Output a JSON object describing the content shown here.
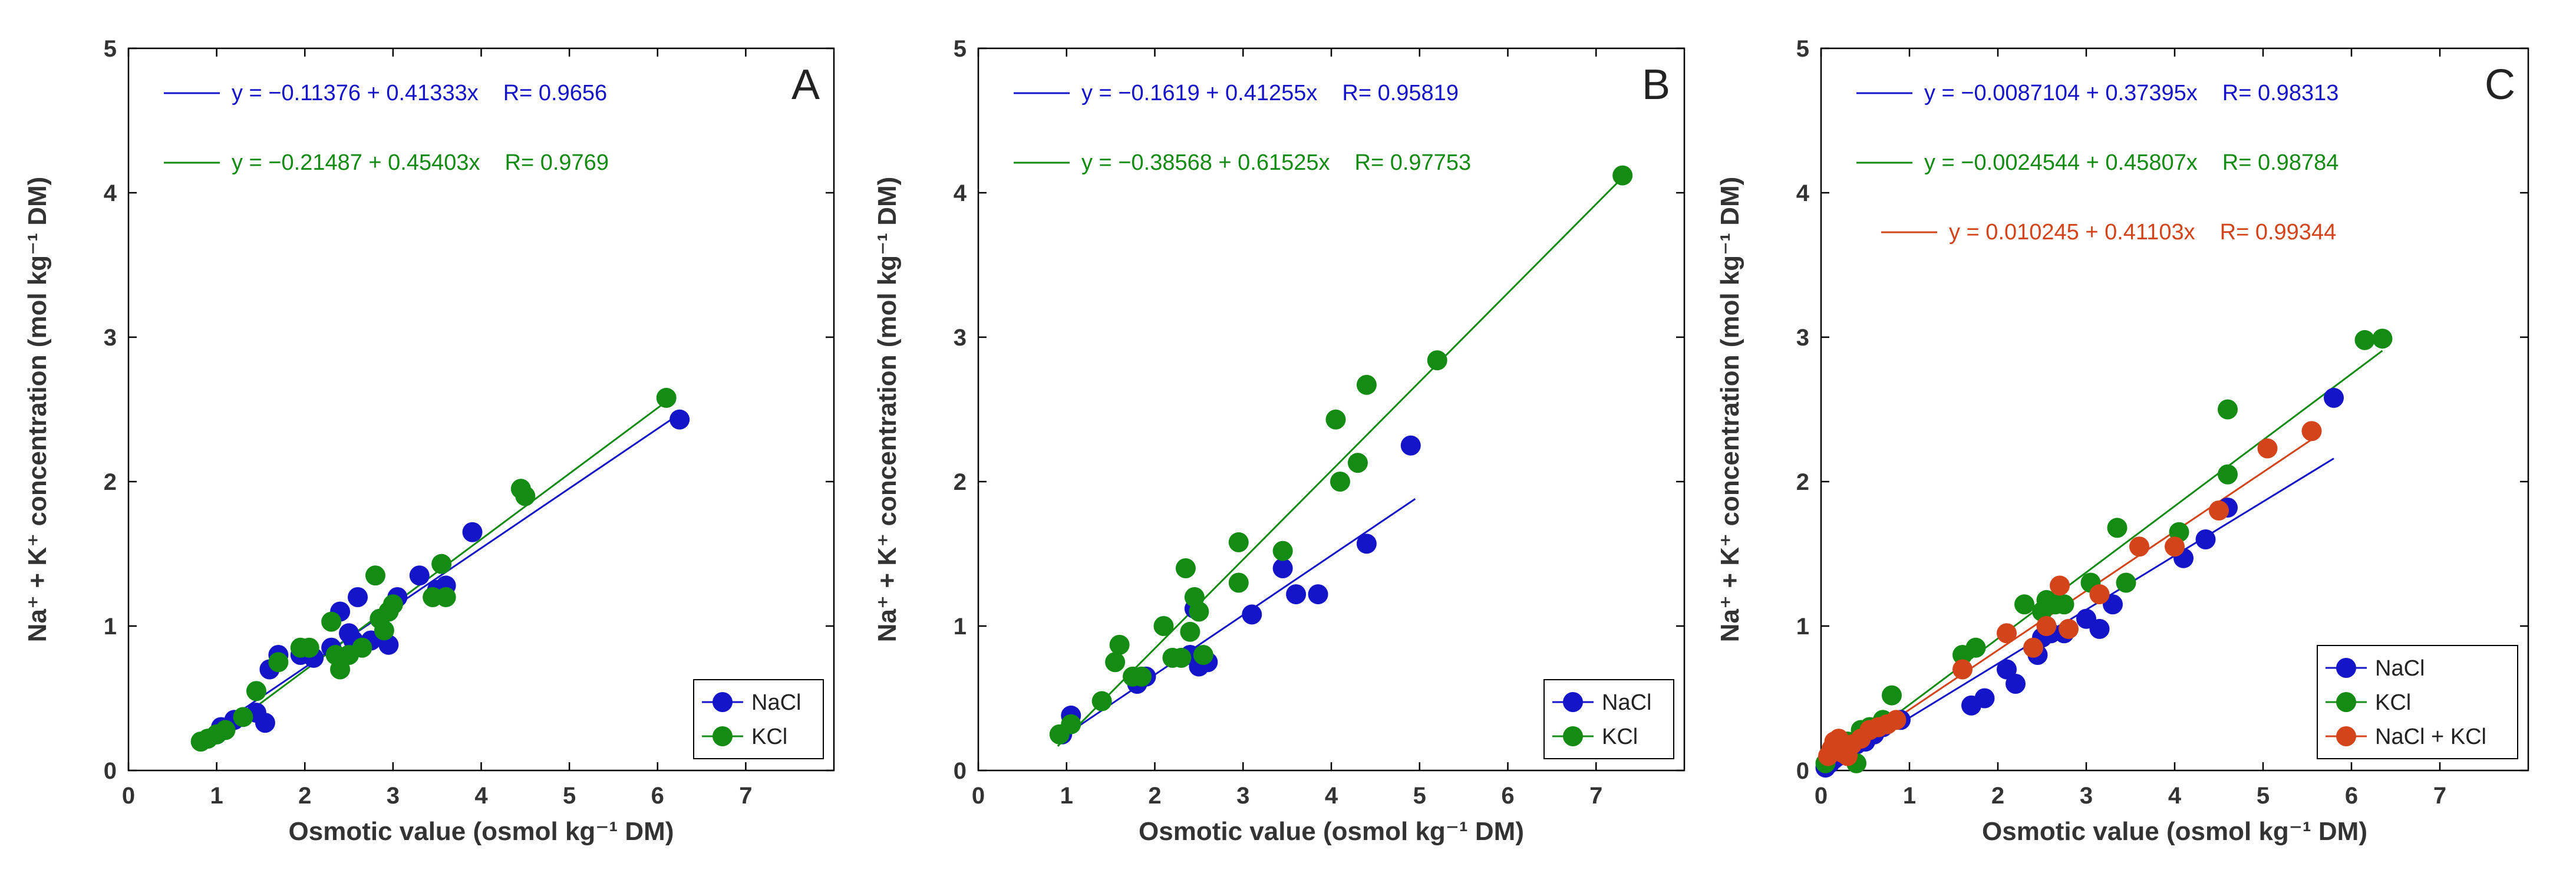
{
  "chart_data": [
    {
      "type": "scatter",
      "panel_label": "A",
      "xlabel": "Osmotic value (osmol kg⁻¹ DM)",
      "ylabel": "Na⁺ + K⁺ concentration (mol kg⁻¹ DM)",
      "xlim": [
        0,
        8
      ],
      "ylim": [
        0,
        5
      ],
      "xticks": [
        "0",
        "1",
        "2",
        "3",
        "4",
        "5",
        "6",
        "7"
      ],
      "yticks": [
        "0",
        "1",
        "2",
        "3",
        "4",
        "5"
      ],
      "legend_position": "bottom-right",
      "series": [
        {
          "name": "NaCl",
          "color": "#1414c8",
          "equation": "y = −0.11376 + 0.41333x",
          "r_text": "R= 0.9656",
          "fit": {
            "intercept": -0.11376,
            "slope": 0.41333,
            "x_range": [
              0.85,
              6.25
            ]
          },
          "points": [
            [
              1.0,
              0.25
            ],
            [
              1.05,
              0.3
            ],
            [
              1.2,
              0.35
            ],
            [
              1.45,
              0.4
            ],
            [
              1.55,
              0.33
            ],
            [
              1.6,
              0.7
            ],
            [
              1.7,
              0.8
            ],
            [
              1.95,
              0.8
            ],
            [
              2.1,
              0.78
            ],
            [
              2.3,
              0.85
            ],
            [
              2.4,
              1.1
            ],
            [
              2.5,
              0.95
            ],
            [
              2.55,
              0.9
            ],
            [
              2.6,
              1.2
            ],
            [
              2.75,
              0.9
            ],
            [
              2.85,
              1.05
            ],
            [
              2.95,
              0.87
            ],
            [
              3.05,
              1.2
            ],
            [
              3.3,
              1.35
            ],
            [
              3.5,
              1.25
            ],
            [
              3.6,
              1.28
            ],
            [
              3.9,
              1.65
            ],
            [
              6.25,
              2.43
            ]
          ]
        },
        {
          "name": "KCl",
          "color": "#148c14",
          "equation": "y = −0.21487 + 0.45403x",
          "r_text": "R= 0.9769",
          "fit": {
            "intercept": -0.21487,
            "slope": 0.45403,
            "x_range": [
              0.8,
              6.1
            ]
          },
          "points": [
            [
              0.82,
              0.2
            ],
            [
              0.9,
              0.22
            ],
            [
              1.0,
              0.25
            ],
            [
              1.1,
              0.28
            ],
            [
              1.3,
              0.37
            ],
            [
              1.45,
              0.55
            ],
            [
              1.7,
              0.75
            ],
            [
              1.95,
              0.85
            ],
            [
              2.05,
              0.85
            ],
            [
              2.3,
              1.03
            ],
            [
              2.35,
              0.8
            ],
            [
              2.4,
              0.7
            ],
            [
              2.5,
              0.8
            ],
            [
              2.65,
              0.85
            ],
            [
              2.8,
              1.35
            ],
            [
              2.85,
              1.05
            ],
            [
              2.9,
              0.97
            ],
            [
              2.95,
              1.1
            ],
            [
              3.0,
              1.15
            ],
            [
              3.45,
              1.2
            ],
            [
              3.55,
              1.43
            ],
            [
              3.6,
              1.2
            ],
            [
              4.45,
              1.95
            ],
            [
              4.5,
              1.9
            ],
            [
              6.1,
              2.58
            ]
          ]
        }
      ]
    },
    {
      "type": "scatter",
      "panel_label": "B",
      "xlabel": "Osmotic value (osmol kg⁻¹ DM)",
      "ylabel": "Na⁺ + K⁺ concentration (mol kg⁻¹ DM)",
      "xlim": [
        0,
        8
      ],
      "ylim": [
        0,
        5
      ],
      "xticks": [
        "0",
        "1",
        "2",
        "3",
        "4",
        "5",
        "6",
        "7"
      ],
      "yticks": [
        "0",
        "1",
        "2",
        "3",
        "4",
        "5"
      ],
      "legend_position": "bottom-right",
      "series": [
        {
          "name": "NaCl",
          "color": "#1414c8",
          "equation": "y = −0.1619 + 0.41255x",
          "r_text": "R= 0.95819",
          "fit": {
            "intercept": -0.1619,
            "slope": 0.41255,
            "x_range": [
              0.95,
              4.95
            ]
          },
          "points": [
            [
              0.95,
              0.25
            ],
            [
              1.05,
              0.38
            ],
            [
              1.8,
              0.6
            ],
            [
              1.9,
              0.65
            ],
            [
              2.4,
              0.8
            ],
            [
              2.45,
              1.12
            ],
            [
              2.5,
              0.72
            ],
            [
              2.6,
              0.75
            ],
            [
              3.1,
              1.08
            ],
            [
              3.45,
              1.4
            ],
            [
              3.6,
              1.22
            ],
            [
              3.85,
              1.22
            ],
            [
              4.4,
              1.57
            ],
            [
              4.9,
              2.25
            ]
          ]
        },
        {
          "name": "KCl",
          "color": "#148c14",
          "equation": "y = −0.38568 + 0.61525x",
          "r_text": "R= 0.97753",
          "fit": {
            "intercept": -0.38568,
            "slope": 0.61525,
            "x_range": [
              0.9,
              7.3
            ]
          },
          "points": [
            [
              0.92,
              0.25
            ],
            [
              1.05,
              0.32
            ],
            [
              1.4,
              0.48
            ],
            [
              1.55,
              0.75
            ],
            [
              1.6,
              0.87
            ],
            [
              1.75,
              0.65
            ],
            [
              1.85,
              0.65
            ],
            [
              2.1,
              1.0
            ],
            [
              2.2,
              0.78
            ],
            [
              2.3,
              0.78
            ],
            [
              2.35,
              1.4
            ],
            [
              2.4,
              0.96
            ],
            [
              2.45,
              1.2
            ],
            [
              2.5,
              1.1
            ],
            [
              2.55,
              0.8
            ],
            [
              2.95,
              1.58
            ],
            [
              2.95,
              1.3
            ],
            [
              3.45,
              1.52
            ],
            [
              4.05,
              2.43
            ],
            [
              4.1,
              2.0
            ],
            [
              4.3,
              2.13
            ],
            [
              4.4,
              2.67
            ],
            [
              5.2,
              2.84
            ],
            [
              7.3,
              4.12
            ]
          ]
        }
      ]
    },
    {
      "type": "scatter",
      "panel_label": "C",
      "xlabel": "Osmotic value (osmol kg⁻¹ DM)",
      "ylabel": "Na⁺ + K⁺ concentration (mol kg⁻¹ DM)",
      "xlim": [
        0,
        8
      ],
      "ylim": [
        0,
        5
      ],
      "xticks": [
        "0",
        "1",
        "2",
        "3",
        "4",
        "5",
        "6",
        "7"
      ],
      "yticks": [
        "0",
        "1",
        "2",
        "3",
        "4",
        "5"
      ],
      "legend_position": "bottom-right",
      "series": [
        {
          "name": "NaCl",
          "color": "#1414c8",
          "equation": "y = −0.0087104 + 0.37395x",
          "r_text": "R= 0.98313",
          "fit": {
            "intercept": -0.0087104,
            "slope": 0.37395,
            "x_range": [
              0.0,
              5.8
            ]
          },
          "points": [
            [
              0.05,
              0.02
            ],
            [
              0.1,
              0.05
            ],
            [
              0.15,
              0.08
            ],
            [
              0.2,
              0.1
            ],
            [
              0.3,
              0.12
            ],
            [
              0.4,
              0.18
            ],
            [
              0.5,
              0.2
            ],
            [
              0.6,
              0.25
            ],
            [
              0.7,
              0.3
            ],
            [
              0.9,
              0.35
            ],
            [
              1.7,
              0.45
            ],
            [
              1.85,
              0.5
            ],
            [
              2.1,
              0.7
            ],
            [
              2.2,
              0.6
            ],
            [
              2.45,
              0.8
            ],
            [
              2.5,
              0.92
            ],
            [
              2.6,
              0.95
            ],
            [
              2.75,
              0.95
            ],
            [
              3.0,
              1.05
            ],
            [
              3.15,
              0.98
            ],
            [
              3.3,
              1.15
            ],
            [
              4.1,
              1.47
            ],
            [
              4.35,
              1.6
            ],
            [
              4.6,
              1.82
            ],
            [
              5.8,
              2.58
            ]
          ]
        },
        {
          "name": "KCl",
          "color": "#148c14",
          "equation": "y = −0.0024544 + 0.45807x",
          "r_text": "R= 0.98784",
          "fit": {
            "intercept": -0.0024544,
            "slope": 0.45807,
            "x_range": [
              0.0,
              6.35
            ]
          },
          "points": [
            [
              0.05,
              0.05
            ],
            [
              0.1,
              0.12
            ],
            [
              0.15,
              0.15
            ],
            [
              0.2,
              0.18
            ],
            [
              0.3,
              0.2
            ],
            [
              0.4,
              0.05
            ],
            [
              0.45,
              0.28
            ],
            [
              0.55,
              0.3
            ],
            [
              0.7,
              0.35
            ],
            [
              0.8,
              0.52
            ],
            [
              1.6,
              0.8
            ],
            [
              1.75,
              0.85
            ],
            [
              2.3,
              1.15
            ],
            [
              2.5,
              1.1
            ],
            [
              2.55,
              1.18
            ],
            [
              2.65,
              1.15
            ],
            [
              2.75,
              1.15
            ],
            [
              3.05,
              1.3
            ],
            [
              3.35,
              1.68
            ],
            [
              3.45,
              1.3
            ],
            [
              4.05,
              1.65
            ],
            [
              4.6,
              2.5
            ],
            [
              4.6,
              2.05
            ],
            [
              6.15,
              2.98
            ],
            [
              6.35,
              2.99
            ]
          ]
        },
        {
          "name": "NaCl + KCl",
          "color": "#d4441a",
          "equation": "y = 0.010245 + 0.41103x",
          "r_text": "R= 0.99344",
          "fit": {
            "intercept": 0.010245,
            "slope": 0.41103,
            "x_range": [
              0.0,
              5.6
            ]
          },
          "points": [
            [
              0.08,
              0.1
            ],
            [
              0.12,
              0.15
            ],
            [
              0.15,
              0.2
            ],
            [
              0.2,
              0.22
            ],
            [
              0.25,
              0.12
            ],
            [
              0.3,
              0.1
            ],
            [
              0.35,
              0.18
            ],
            [
              0.45,
              0.22
            ],
            [
              0.55,
              0.28
            ],
            [
              0.65,
              0.3
            ],
            [
              0.75,
              0.32
            ],
            [
              0.85,
              0.35
            ],
            [
              1.6,
              0.7
            ],
            [
              2.1,
              0.95
            ],
            [
              2.4,
              0.85
            ],
            [
              2.55,
              1.0
            ],
            [
              2.7,
              1.28
            ],
            [
              2.8,
              0.98
            ],
            [
              3.15,
              1.22
            ],
            [
              3.6,
              1.55
            ],
            [
              4.0,
              1.55
            ],
            [
              4.5,
              1.8
            ],
            [
              5.05,
              2.23
            ],
            [
              5.55,
              2.35
            ]
          ]
        }
      ]
    }
  ]
}
